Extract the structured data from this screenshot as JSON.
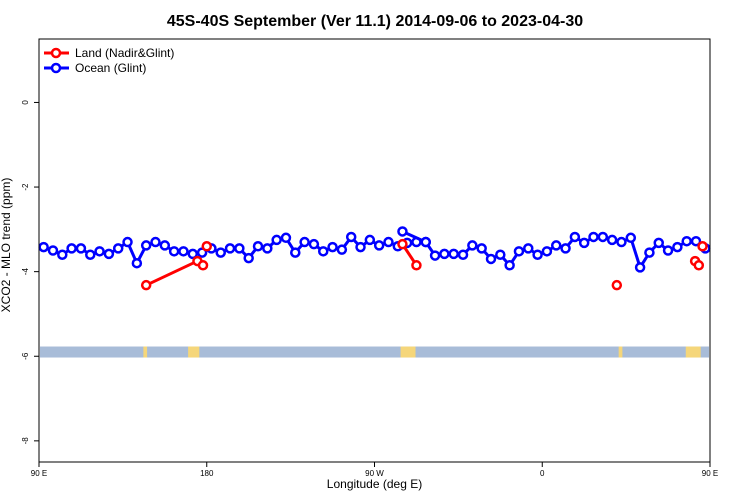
{
  "chart_data": {
    "type": "line",
    "title": "45S-40S September (Ver 11.1)   2014-09-06 to 2023-04-30",
    "xlabel": "Longitude (deg E)",
    "ylabel": "XCO2 - MLO trend (ppm)",
    "xlim": [
      90,
      450
    ],
    "ylim": [
      -8.5,
      1.5
    ],
    "x_ticks": [
      {
        "value": 90,
        "label": "90 E"
      },
      {
        "value": 180,
        "label": "180"
      },
      {
        "value": 270,
        "label": "90 W"
      },
      {
        "value": 360,
        "label": "0"
      },
      {
        "value": 450,
        "label": "90 E"
      }
    ],
    "y_ticks": [
      {
        "value": 0,
        "label": "0"
      },
      {
        "value": -2,
        "label": "-2"
      },
      {
        "value": -4,
        "label": "-4"
      },
      {
        "value": -6,
        "label": "-6"
      },
      {
        "value": -8,
        "label": "-8"
      }
    ],
    "legend_position": "top-left",
    "series": [
      {
        "name": "Land (Nadir&Glint)",
        "color": "#ff0000",
        "segments": [
          [
            [
              147.5,
              -4.32
            ],
            [
              175,
              -3.75
            ],
            [
              178,
              -3.85
            ]
          ],
          [
            [
              180,
              -3.4
            ]
          ],
          [
            [
              285,
              -3.35
            ],
            [
              292.5,
              -3.85
            ]
          ],
          [
            [
              400,
              -4.32
            ]
          ],
          [
            [
              442,
              -3.75
            ],
            [
              444,
              -3.85
            ]
          ],
          [
            [
              446,
              -3.4
            ]
          ]
        ]
      },
      {
        "name": "Ocean (Glint)",
        "color": "#0000ff",
        "segments": [
          [
            [
              92.5,
              -3.42
            ],
            [
              97.5,
              -3.5
            ],
            [
              102.5,
              -3.6
            ],
            [
              107.5,
              -3.45
            ],
            [
              112.5,
              -3.45
            ],
            [
              117.5,
              -3.6
            ],
            [
              122.5,
              -3.52
            ],
            [
              127.5,
              -3.58
            ],
            [
              132.5,
              -3.45
            ],
            [
              137.5,
              -3.3
            ],
            [
              142.5,
              -3.8
            ],
            [
              147.5,
              -3.38
            ],
            [
              152.5,
              -3.3
            ],
            [
              157.5,
              -3.38
            ],
            [
              162.5,
              -3.52
            ],
            [
              167.5,
              -3.52
            ],
            [
              172.5,
              -3.58
            ],
            [
              177.5,
              -3.55
            ],
            [
              182.5,
              -3.45
            ],
            [
              187.5,
              -3.55
            ],
            [
              192.5,
              -3.45
            ],
            [
              197.5,
              -3.45
            ],
            [
              202.5,
              -3.68
            ],
            [
              207.5,
              -3.4
            ],
            [
              212.5,
              -3.45
            ],
            [
              217.5,
              -3.25
            ],
            [
              222.5,
              -3.2
            ],
            [
              227.5,
              -3.55
            ],
            [
              232.5,
              -3.3
            ],
            [
              237.5,
              -3.35
            ],
            [
              242.5,
              -3.52
            ],
            [
              247.5,
              -3.42
            ],
            [
              252.5,
              -3.48
            ],
            [
              257.5,
              -3.18
            ],
            [
              262.5,
              -3.42
            ],
            [
              267.5,
              -3.25
            ],
            [
              272.5,
              -3.38
            ],
            [
              277.5,
              -3.3
            ],
            [
              282.5,
              -3.4
            ],
            [
              287.5,
              -3.32
            ],
            [
              292.5,
              -3.3
            ],
            [
              297.5,
              -3.3
            ],
            [
              302.5,
              -3.62
            ],
            [
              307.5,
              -3.58
            ],
            [
              312.5,
              -3.58
            ],
            [
              317.5,
              -3.6
            ],
            [
              322.5,
              -3.38
            ],
            [
              327.5,
              -3.45
            ],
            [
              332.5,
              -3.7
            ],
            [
              337.5,
              -3.6
            ],
            [
              342.5,
              -3.85
            ],
            [
              347.5,
              -3.52
            ],
            [
              352.5,
              -3.45
            ],
            [
              357.5,
              -3.6
            ],
            [
              362.5,
              -3.52
            ],
            [
              367.5,
              -3.38
            ],
            [
              372.5,
              -3.45
            ],
            [
              377.5,
              -3.18
            ],
            [
              382.5,
              -3.32
            ],
            [
              387.5,
              -3.18
            ],
            [
              392.5,
              -3.18
            ],
            [
              397.5,
              -3.25
            ],
            [
              402.5,
              -3.3
            ],
            [
              407.5,
              -3.2
            ],
            [
              412.5,
              -3.9
            ],
            [
              417.5,
              -3.55
            ],
            [
              422.5,
              -3.32
            ],
            [
              427.5,
              -3.5
            ],
            [
              432.5,
              -3.42
            ],
            [
              437.5,
              -3.28
            ],
            [
              442.5,
              -3.28
            ],
            [
              447.5,
              -3.45
            ]
          ]
        ]
      }
    ],
    "ocean_extra_segments": [
      [
        [
          285,
          -3.05
        ],
        [
          297.5,
          -3.3
        ]
      ]
    ],
    "land_strip": {
      "y": -5.9,
      "ocean_color": "#a8bcd8",
      "land_color": "#f5d67a",
      "land_spans": [
        [
          146,
          148
        ],
        [
          170,
          176
        ],
        [
          284,
          292
        ],
        [
          401,
          403
        ],
        [
          437,
          445
        ]
      ]
    }
  }
}
